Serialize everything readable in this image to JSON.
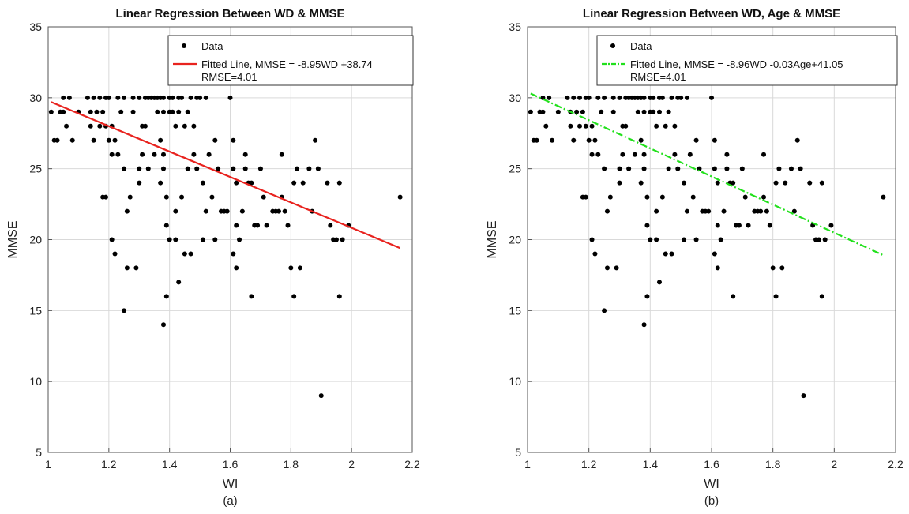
{
  "scatter_points": [
    [
      1.01,
      29
    ],
    [
      1.02,
      27
    ],
    [
      1.03,
      27
    ],
    [
      1.04,
      29
    ],
    [
      1.05,
      30
    ],
    [
      1.05,
      29
    ],
    [
      1.06,
      28
    ],
    [
      1.07,
      30
    ],
    [
      1.08,
      27
    ],
    [
      1.1,
      29
    ],
    [
      1.13,
      30
    ],
    [
      1.14,
      29
    ],
    [
      1.14,
      28
    ],
    [
      1.15,
      30
    ],
    [
      1.15,
      27
    ],
    [
      1.16,
      29
    ],
    [
      1.17,
      30
    ],
    [
      1.17,
      28
    ],
    [
      1.18,
      23
    ],
    [
      1.18,
      29
    ],
    [
      1.19,
      23
    ],
    [
      1.19,
      28
    ],
    [
      1.19,
      30
    ],
    [
      1.2,
      27
    ],
    [
      1.2,
      30
    ],
    [
      1.21,
      26
    ],
    [
      1.21,
      28
    ],
    [
      1.21,
      20
    ],
    [
      1.22,
      19
    ],
    [
      1.22,
      27
    ],
    [
      1.23,
      30
    ],
    [
      1.23,
      26
    ],
    [
      1.24,
      29
    ],
    [
      1.25,
      25
    ],
    [
      1.25,
      30
    ],
    [
      1.25,
      15
    ],
    [
      1.26,
      22
    ],
    [
      1.26,
      18
    ],
    [
      1.27,
      23
    ],
    [
      1.28,
      29
    ],
    [
      1.28,
      30
    ],
    [
      1.29,
      18
    ],
    [
      1.3,
      30
    ],
    [
      1.3,
      24
    ],
    [
      1.3,
      25
    ],
    [
      1.31,
      26
    ],
    [
      1.31,
      28
    ],
    [
      1.32,
      30
    ],
    [
      1.32,
      28
    ],
    [
      1.33,
      25
    ],
    [
      1.33,
      30
    ],
    [
      1.34,
      30
    ],
    [
      1.35,
      30
    ],
    [
      1.35,
      26
    ],
    [
      1.36,
      30
    ],
    [
      1.36,
      29
    ],
    [
      1.37,
      27
    ],
    [
      1.37,
      30
    ],
    [
      1.37,
      24
    ],
    [
      1.38,
      30
    ],
    [
      1.38,
      25
    ],
    [
      1.38,
      26
    ],
    [
      1.38,
      29
    ],
    [
      1.38,
      14
    ],
    [
      1.39,
      21
    ],
    [
      1.39,
      16
    ],
    [
      1.39,
      23
    ],
    [
      1.4,
      30
    ],
    [
      1.4,
      29
    ],
    [
      1.4,
      20
    ],
    [
      1.41,
      29
    ],
    [
      1.41,
      30
    ],
    [
      1.42,
      22
    ],
    [
      1.42,
      28
    ],
    [
      1.42,
      20
    ],
    [
      1.43,
      30
    ],
    [
      1.43,
      29
    ],
    [
      1.43,
      17
    ],
    [
      1.44,
      23
    ],
    [
      1.44,
      30
    ],
    [
      1.45,
      19
    ],
    [
      1.45,
      28
    ],
    [
      1.46,
      25
    ],
    [
      1.46,
      29
    ],
    [
      1.47,
      19
    ],
    [
      1.47,
      30
    ],
    [
      1.48,
      26
    ],
    [
      1.48,
      28
    ],
    [
      1.49,
      30
    ],
    [
      1.49,
      25
    ],
    [
      1.5,
      30
    ],
    [
      1.51,
      24
    ],
    [
      1.51,
      20
    ],
    [
      1.52,
      22
    ],
    [
      1.52,
      30
    ],
    [
      1.53,
      26
    ],
    [
      1.54,
      23
    ],
    [
      1.55,
      20
    ],
    [
      1.55,
      27
    ],
    [
      1.56,
      25
    ],
    [
      1.57,
      22
    ],
    [
      1.58,
      22
    ],
    [
      1.59,
      22
    ],
    [
      1.6,
      30
    ],
    [
      1.61,
      27
    ],
    [
      1.61,
      25
    ],
    [
      1.61,
      19
    ],
    [
      1.62,
      18
    ],
    [
      1.62,
      21
    ],
    [
      1.62,
      24
    ],
    [
      1.63,
      20
    ],
    [
      1.64,
      22
    ],
    [
      1.65,
      25
    ],
    [
      1.65,
      26
    ],
    [
      1.66,
      24
    ],
    [
      1.67,
      24
    ],
    [
      1.67,
      16
    ],
    [
      1.68,
      21
    ],
    [
      1.69,
      21
    ],
    [
      1.7,
      25
    ],
    [
      1.71,
      23
    ],
    [
      1.72,
      21
    ],
    [
      1.74,
      22
    ],
    [
      1.75,
      22
    ],
    [
      1.76,
      22
    ],
    [
      1.77,
      26
    ],
    [
      1.77,
      23
    ],
    [
      1.78,
      22
    ],
    [
      1.79,
      21
    ],
    [
      1.8,
      18
    ],
    [
      1.81,
      24
    ],
    [
      1.81,
      16
    ],
    [
      1.82,
      25
    ],
    [
      1.83,
      18
    ],
    [
      1.84,
      24
    ],
    [
      1.86,
      25
    ],
    [
      1.87,
      22
    ],
    [
      1.88,
      27
    ],
    [
      1.89,
      25
    ],
    [
      1.9,
      9
    ],
    [
      1.92,
      24
    ],
    [
      1.93,
      21
    ],
    [
      1.94,
      20
    ],
    [
      1.95,
      20
    ],
    [
      1.96,
      24
    ],
    [
      1.96,
      16
    ],
    [
      1.97,
      20
    ],
    [
      1.99,
      21
    ],
    [
      2.16,
      23
    ]
  ],
  "chart_data": [
    {
      "type": "scatter",
      "title": "Linear Regression Between WD & MMSE",
      "subtitle": "(a)",
      "xlabel": "WI",
      "ylabel": "MMSE",
      "xlim": [
        1,
        2.2
      ],
      "ylim": [
        5,
        35
      ],
      "xticks": [
        1,
        1.2,
        1.4,
        1.6,
        1.8,
        2,
        2.2
      ],
      "xtick_labels": [
        "1",
        "1.2",
        "1.4",
        "1.6",
        "1.8",
        "2",
        "2.2"
      ],
      "yticks": [
        5,
        10,
        15,
        20,
        25,
        30,
        35
      ],
      "ytick_labels": [
        "5",
        "10",
        "15",
        "20",
        "25",
        "30",
        "35"
      ],
      "grid": true,
      "legend_position": "top-right",
      "series": [
        {
          "name": "Data",
          "kind": "points",
          "color": "#000000"
        },
        {
          "name": "Fitted Line, MMSE = -8.95WD +38.74",
          "kind": "line",
          "color": "#e8231f",
          "style": "solid",
          "x": [
            1.01,
            2.16
          ],
          "y": [
            29.7,
            19.4
          ]
        }
      ],
      "annotation": "RMSE=4.01"
    },
    {
      "type": "scatter",
      "title": "Linear Regression Between WD, Age & MMSE",
      "subtitle": "(b)",
      "xlabel": "WI",
      "ylabel": "MMSE",
      "xlim": [
        1,
        2.2
      ],
      "ylim": [
        5,
        35
      ],
      "xticks": [
        1,
        1.2,
        1.4,
        1.6,
        1.8,
        2,
        2.2
      ],
      "xtick_labels": [
        "1",
        "1.2",
        "1.4",
        "1.6",
        "1.8",
        "2",
        "2.2"
      ],
      "yticks": [
        5,
        10,
        15,
        20,
        25,
        30,
        35
      ],
      "ytick_labels": [
        "5",
        "10",
        "15",
        "20",
        "25",
        "30",
        "35"
      ],
      "grid": true,
      "legend_position": "top-right",
      "series": [
        {
          "name": "Data",
          "kind": "points",
          "color": "#000000"
        },
        {
          "name": "Fitted Line, MMSE = -8.96WD -0.03Age+41.05",
          "kind": "line",
          "color": "#22e01c",
          "style": "dash-dot",
          "x": [
            1.01,
            2.16
          ],
          "y": [
            30.3,
            18.9
          ]
        }
      ],
      "annotation": "RMSE=4.01"
    }
  ]
}
